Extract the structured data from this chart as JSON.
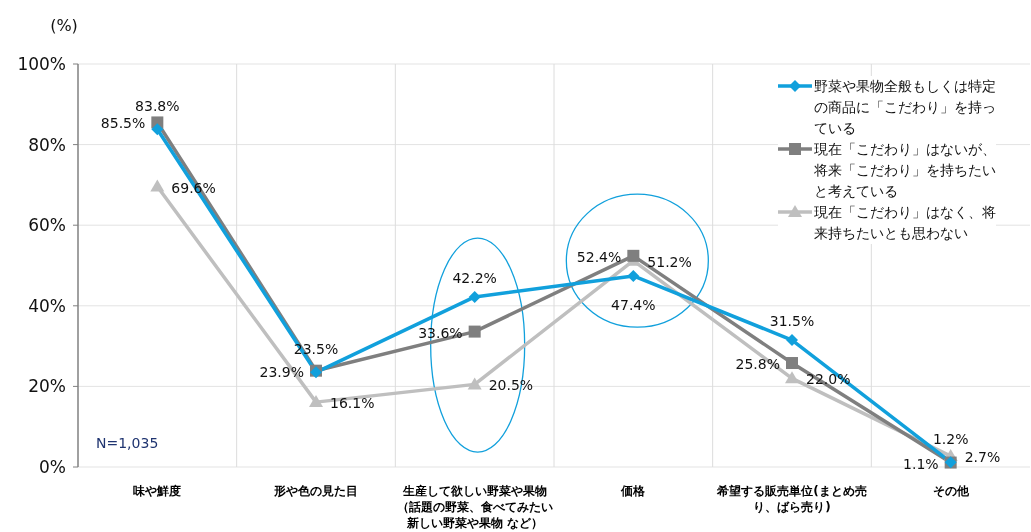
{
  "chart_data": {
    "type": "line",
    "ylabel": "(%)",
    "categories": [
      "味や鮮度",
      "形や色の見た目",
      "生産して欲しい野菜や果物（話題の野菜、食べてみたい新しい野菜や果物 など）",
      "価格",
      "希望する販売単位(まとめ売り、ばら売り)",
      "その他"
    ],
    "series": [
      {
        "name": "野菜や果物全般もしくは特定の商品に「こだわり」を持っている",
        "color": "#11a0dc",
        "marker": "diamond",
        "values": [
          83.8,
          23.5,
          42.2,
          47.4,
          31.5,
          1.2
        ],
        "value_labels": [
          "83.8%",
          "23.5%",
          "42.2%",
          "47.4%",
          "31.5%",
          "1.2%"
        ]
      },
      {
        "name": "現在「こだわり」はないが、将来「こだわり」を持ちたいと考えている",
        "color": "#7f7f7f",
        "marker": "square",
        "values": [
          85.5,
          23.9,
          33.6,
          52.4,
          25.8,
          1.1
        ],
        "value_labels": [
          "85.5%",
          "23.9%",
          "33.6%",
          "52.4%",
          "25.8%",
          "1.1%"
        ]
      },
      {
        "name": "現在「こだわり」はなく、将来持ちたいとも思わない",
        "color": "#bfbfbf",
        "marker": "triangle",
        "values": [
          69.6,
          16.1,
          20.5,
          51.2,
          22.0,
          2.7
        ],
        "value_labels": [
          "69.6%",
          "16.1%",
          "20.5%",
          "51.2%",
          "22.0%",
          "2.7%"
        ]
      }
    ],
    "ylim": [
      0,
      100
    ],
    "yticks": [
      {
        "value": 0,
        "label": "0%"
      },
      {
        "value": 20,
        "label": "20%"
      },
      {
        "value": 40,
        "label": "40%"
      },
      {
        "value": 60,
        "label": "60%"
      },
      {
        "value": 80,
        "label": "80%"
      },
      {
        "value": 100,
        "label": "100%"
      }
    ],
    "grid": true,
    "legend": "top right",
    "annotations": [
      "N=1,035"
    ]
  }
}
